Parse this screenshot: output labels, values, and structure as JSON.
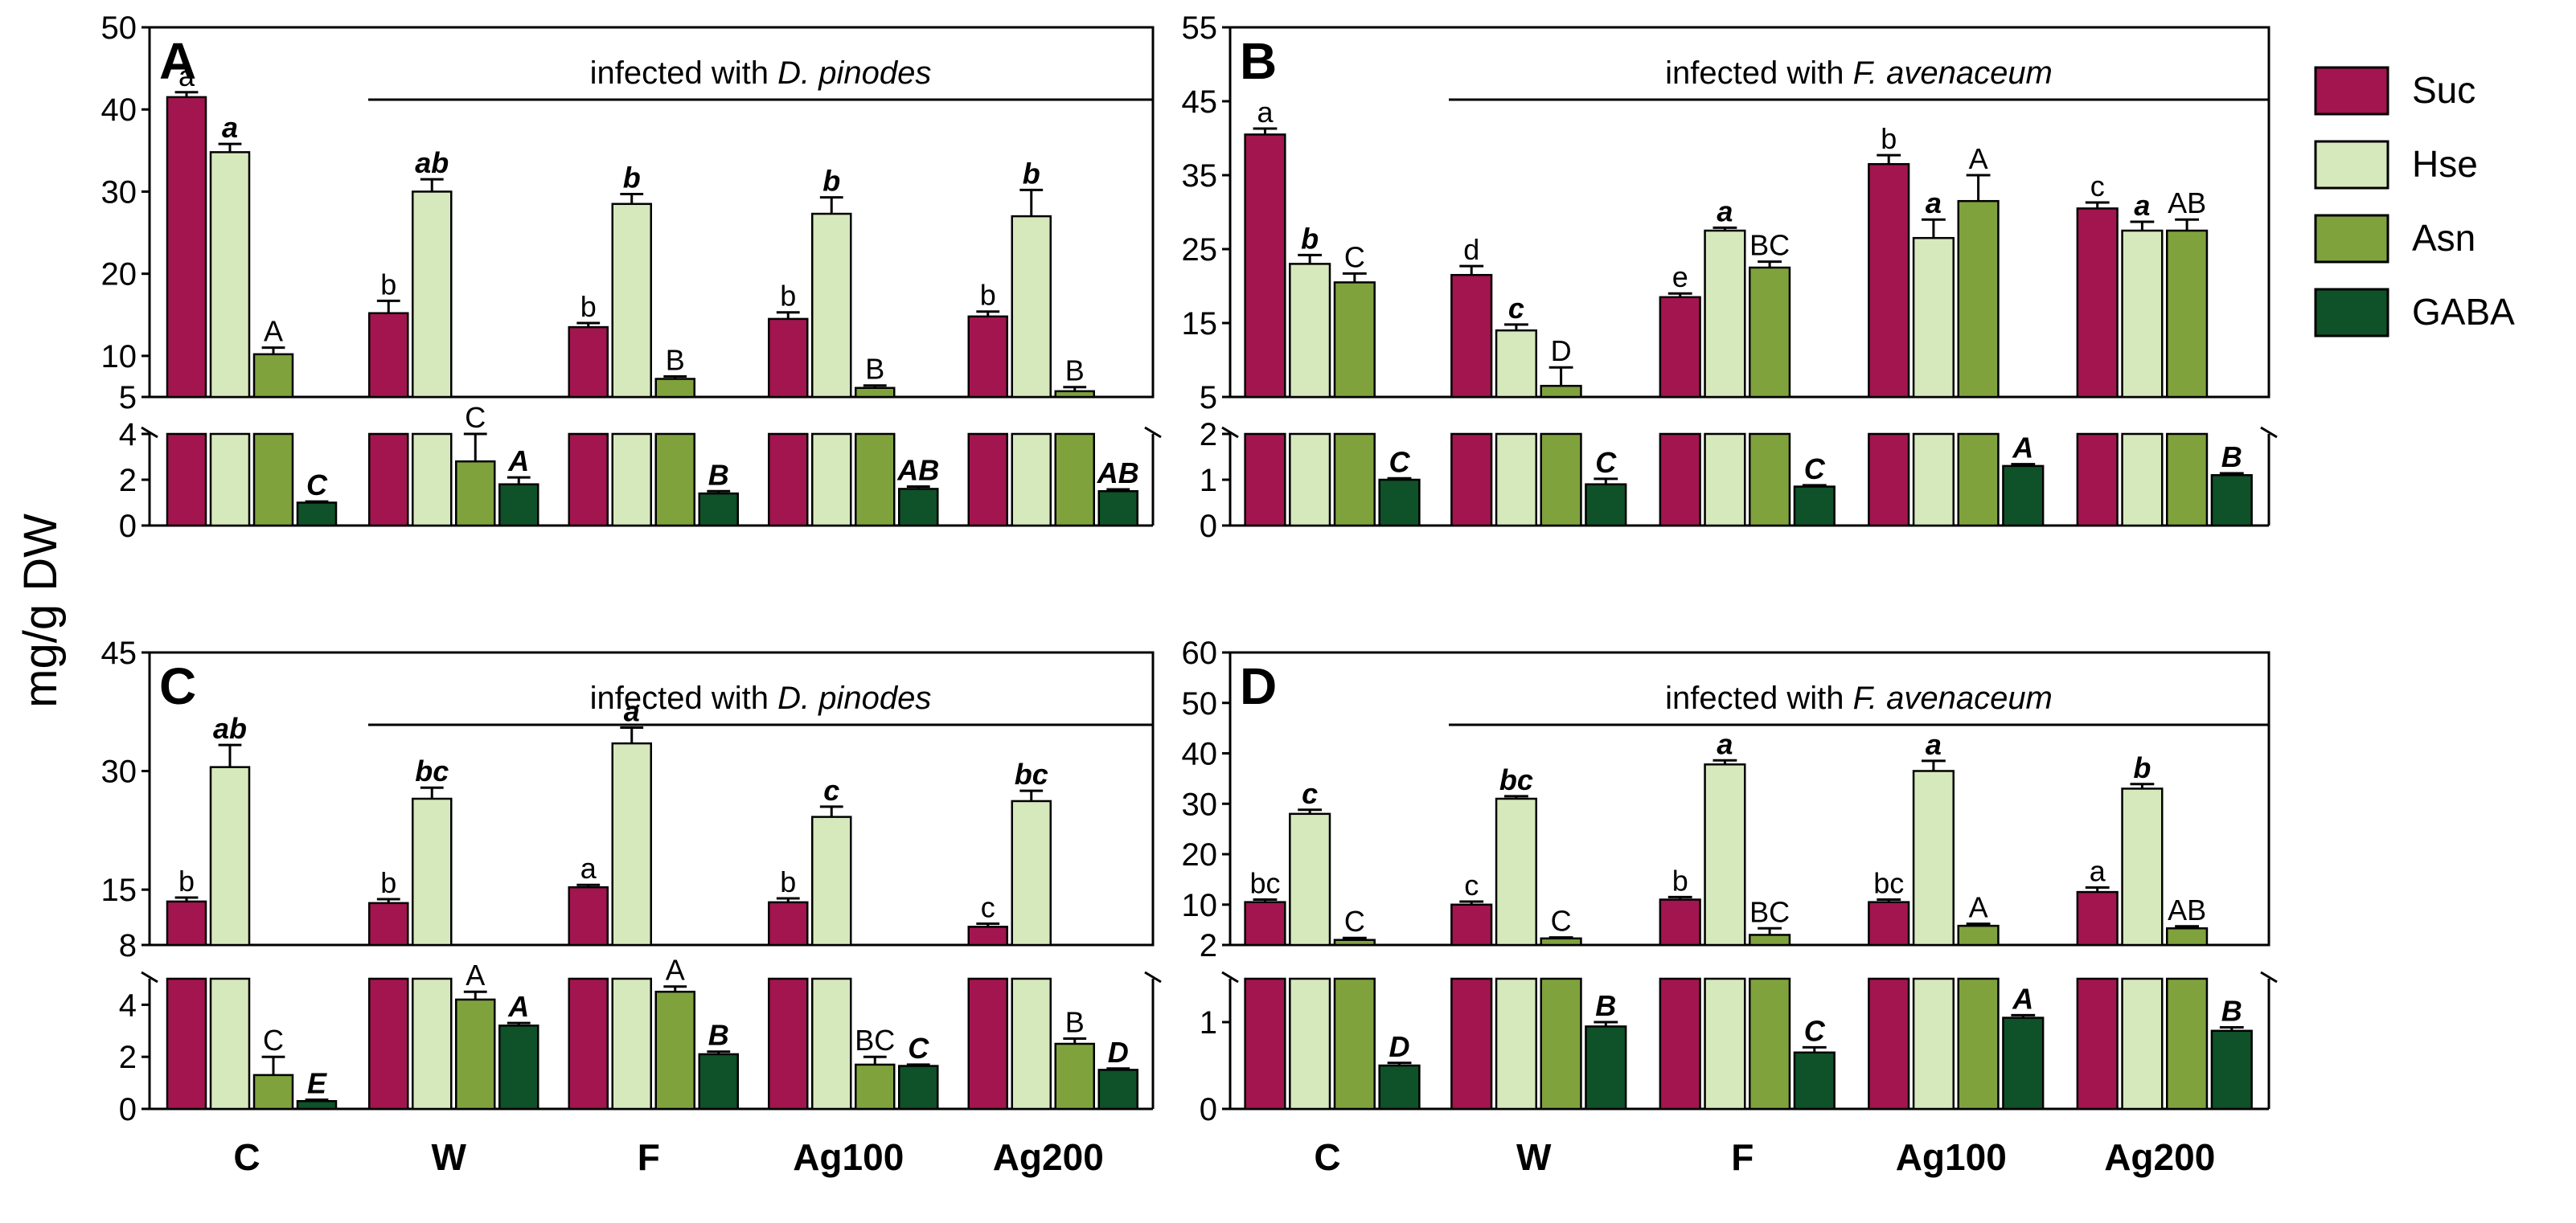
{
  "figure": {
    "y_axis_label": "mg/g DW",
    "categories": [
      "C",
      "W",
      "F",
      "Ag100",
      "Ag200"
    ],
    "legend": [
      "Suc",
      "Hse",
      "Asn",
      "GABA"
    ]
  },
  "colors": {
    "Suc": "#a3154f",
    "Hse": "#d6e9bc",
    "Asn": "#7fa23d",
    "GABA": "#0f5128"
  },
  "panels": [
    {
      "letter": "A",
      "infected_prefix": "infected with ",
      "infected_species": "D. pinodes"
    },
    {
      "letter": "B",
      "infected_prefix": "infected with ",
      "infected_species": "F. avenaceum"
    },
    {
      "letter": "C",
      "infected_prefix": "infected with ",
      "infected_species": "D. pinodes"
    },
    {
      "letter": "D",
      "infected_prefix": "infected with ",
      "infected_species": "F. avenaceum"
    }
  ],
  "chart_data": [
    {
      "type": "bar",
      "panel": "A",
      "categories": [
        "C",
        "W",
        "F",
        "Ag100",
        "Ag200"
      ],
      "broken_axis": true,
      "upper_yrange": [
        5,
        50
      ],
      "upper_ticks": [
        5,
        10,
        20,
        30,
        40,
        50
      ],
      "lower_yrange": [
        0,
        4
      ],
      "lower_ticks": [
        0,
        2,
        4
      ],
      "series": [
        {
          "name": "Suc",
          "values": [
            41.5,
            15.2,
            13.5,
            14.5,
            14.8
          ],
          "errors": [
            0.6,
            1.5,
            0.5,
            0.8,
            0.6
          ],
          "labels": [
            "a",
            "b",
            "b",
            "b",
            "b"
          ],
          "label_style": "normal"
        },
        {
          "name": "Hse",
          "values": [
            34.8,
            30.0,
            28.5,
            27.3,
            27.0
          ],
          "errors": [
            1.0,
            1.5,
            1.2,
            2.0,
            3.2
          ],
          "labels": [
            "a",
            "ab",
            "b",
            "b",
            "b"
          ],
          "label_style": "bold-italic"
        },
        {
          "name": "Asn",
          "values": [
            10.2,
            2.8,
            7.2,
            6.1,
            5.7
          ],
          "errors": [
            0.8,
            1.2,
            0.3,
            0.3,
            0.5
          ],
          "labels": [
            "A",
            "C",
            "B",
            "B",
            "B"
          ],
          "label_style": "normal"
        },
        {
          "name": "GABA",
          "values": [
            1.0,
            1.8,
            1.4,
            1.6,
            1.5
          ],
          "errors": [
            0.05,
            0.3,
            0.1,
            0.1,
            0.08
          ],
          "labels": [
            "C",
            "A",
            "B",
            "AB",
            "AB"
          ],
          "label_style": "bold-italic"
        }
      ]
    },
    {
      "type": "bar",
      "panel": "B",
      "categories": [
        "C",
        "W",
        "F",
        "Ag100",
        "Ag200"
      ],
      "broken_axis": true,
      "upper_yrange": [
        5,
        55
      ],
      "upper_ticks": [
        5,
        15,
        25,
        35,
        45,
        55
      ],
      "lower_yrange": [
        0,
        2
      ],
      "lower_ticks": [
        0,
        1,
        2
      ],
      "series": [
        {
          "name": "Suc",
          "values": [
            40.5,
            21.5,
            18.5,
            36.5,
            30.5
          ],
          "errors": [
            0.8,
            1.2,
            0.5,
            1.2,
            0.8
          ],
          "labels": [
            "a",
            "d",
            "e",
            "b",
            "c"
          ],
          "label_style": "normal"
        },
        {
          "name": "Hse",
          "values": [
            23.0,
            14.0,
            27.5,
            26.5,
            27.5
          ],
          "errors": [
            1.2,
            0.8,
            0.4,
            2.5,
            1.2
          ],
          "labels": [
            "b",
            "c",
            "a",
            "a",
            "a"
          ],
          "label_style": "bold-italic"
        },
        {
          "name": "Asn",
          "values": [
            20.5,
            6.5,
            22.5,
            31.5,
            27.5
          ],
          "errors": [
            1.2,
            2.5,
            0.8,
            3.5,
            1.5
          ],
          "labels": [
            "C",
            "D",
            "BC",
            "A",
            "AB"
          ],
          "label_style": "normal"
        },
        {
          "name": "GABA",
          "values": [
            1.0,
            0.9,
            0.85,
            1.3,
            1.1
          ],
          "errors": [
            0.03,
            0.12,
            0.03,
            0.04,
            0.04
          ],
          "labels": [
            "C",
            "C",
            "C",
            "A",
            "B"
          ],
          "label_style": "bold-italic"
        }
      ]
    },
    {
      "type": "bar",
      "panel": "C",
      "categories": [
        "C",
        "W",
        "F",
        "Ag100",
        "Ag200"
      ],
      "broken_axis": true,
      "upper_yrange": [
        8,
        45
      ],
      "upper_ticks": [
        8,
        15,
        30,
        45
      ],
      "lower_yrange": [
        0,
        5
      ],
      "lower_ticks": [
        0,
        2,
        4
      ],
      "series": [
        {
          "name": "Suc",
          "values": [
            13.5,
            13.3,
            15.3,
            13.4,
            10.3
          ],
          "errors": [
            0.5,
            0.5,
            0.3,
            0.5,
            0.4
          ],
          "labels": [
            "b",
            "b",
            "a",
            "b",
            "c"
          ],
          "label_style": "normal"
        },
        {
          "name": "Hse",
          "values": [
            30.5,
            26.5,
            33.5,
            24.2,
            26.2
          ],
          "errors": [
            2.8,
            1.4,
            2.0,
            1.3,
            1.3
          ],
          "labels": [
            "ab",
            "bc",
            "a",
            "c",
            "bc"
          ],
          "label_style": "bold-italic"
        },
        {
          "name": "Asn",
          "values": [
            1.3,
            4.2,
            4.5,
            1.7,
            2.5
          ],
          "errors": [
            0.7,
            0.3,
            0.2,
            0.3,
            0.2
          ],
          "labels": [
            "C",
            "A",
            "A",
            "BC",
            "B"
          ],
          "label_style": "normal"
        },
        {
          "name": "GABA",
          "values": [
            0.3,
            3.2,
            2.1,
            1.65,
            1.5
          ],
          "errors": [
            0.05,
            0.1,
            0.1,
            0.05,
            0.05
          ],
          "labels": [
            "E",
            "A",
            "B",
            "C",
            "D"
          ],
          "label_style": "bold-italic"
        }
      ]
    },
    {
      "type": "bar",
      "panel": "D",
      "categories": [
        "C",
        "W",
        "F",
        "Ag100",
        "Ag200"
      ],
      "broken_axis": true,
      "upper_yrange": [
        2,
        60
      ],
      "upper_ticks": [
        2,
        10,
        20,
        30,
        40,
        50,
        60
      ],
      "lower_yrange": [
        0,
        1.5
      ],
      "lower_ticks": [
        0,
        1
      ],
      "series": [
        {
          "name": "Suc",
          "values": [
            10.5,
            10.0,
            11.0,
            10.5,
            12.5
          ],
          "errors": [
            0.5,
            0.6,
            0.5,
            0.5,
            0.9
          ],
          "labels": [
            "bc",
            "c",
            "b",
            "bc",
            "a"
          ],
          "label_style": "normal"
        },
        {
          "name": "Hse",
          "values": [
            28.0,
            31.0,
            37.8,
            36.5,
            33.0
          ],
          "errors": [
            0.8,
            0.5,
            0.8,
            2.0,
            0.9
          ],
          "labels": [
            "c",
            "bc",
            "a",
            "a",
            "b"
          ],
          "label_style": "bold-italic"
        },
        {
          "name": "Asn",
          "values": [
            3.0,
            3.3,
            4.0,
            5.8,
            5.3
          ],
          "errors": [
            0.4,
            0.2,
            1.3,
            0.4,
            0.4
          ],
          "labels": [
            "C",
            "C",
            "BC",
            "A",
            "AB"
          ],
          "label_style": "normal"
        },
        {
          "name": "GABA",
          "values": [
            0.5,
            0.95,
            0.65,
            1.05,
            0.9
          ],
          "errors": [
            0.03,
            0.05,
            0.06,
            0.03,
            0.04
          ],
          "labels": [
            "D",
            "B",
            "C",
            "A",
            "B"
          ],
          "label_style": "bold-italic"
        }
      ]
    }
  ]
}
